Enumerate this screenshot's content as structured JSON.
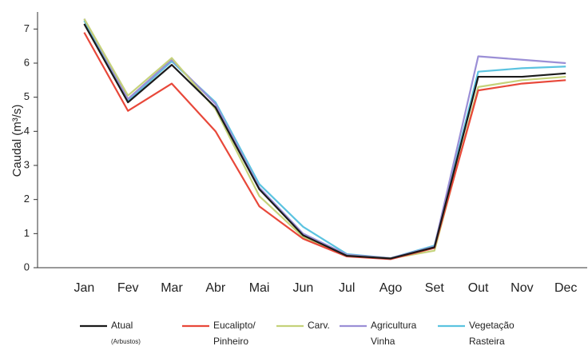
{
  "chart_data": {
    "type": "line",
    "y_label": "Caudal (m³/s)",
    "categories": [
      "Jan",
      "Fev",
      "Mar",
      "Abr",
      "Mai",
      "Jun",
      "Jul",
      "Ago",
      "Set",
      "Out",
      "Nov",
      "Dec"
    ],
    "ylim": [
      0,
      7.5
    ],
    "yticks": [
      0,
      1,
      2,
      3,
      4,
      5,
      6,
      7
    ],
    "series": [
      {
        "name": "Atual (Arbustos)",
        "color": "#1a1a1a",
        "values": [
          7.15,
          4.85,
          5.95,
          4.7,
          2.3,
          0.95,
          0.35,
          0.27,
          0.6,
          5.6,
          5.6,
          5.7
        ]
      },
      {
        "name": "Eucalipto/ Pinheiro",
        "color": "#e8483a",
        "values": [
          6.9,
          4.6,
          5.4,
          4.0,
          1.8,
          0.85,
          0.33,
          0.25,
          0.58,
          5.2,
          5.4,
          5.5
        ]
      },
      {
        "name": "Carv.",
        "color": "#c5d27a",
        "values": [
          7.3,
          5.05,
          6.15,
          4.65,
          2.1,
          0.9,
          0.35,
          0.27,
          0.5,
          5.3,
          5.5,
          5.6
        ]
      },
      {
        "name": "Agricultura Vinha",
        "color": "#9b8fd6",
        "values": [
          7.3,
          4.95,
          6.1,
          4.8,
          2.35,
          1.0,
          0.38,
          0.28,
          0.62,
          6.2,
          6.1,
          6.0
        ]
      },
      {
        "name": "Vegetação Rasteira",
        "color": "#5bc3e0",
        "values": [
          7.25,
          4.9,
          6.05,
          4.85,
          2.45,
          1.2,
          0.4,
          0.28,
          0.65,
          5.75,
          5.85,
          5.9
        ]
      }
    ]
  }
}
